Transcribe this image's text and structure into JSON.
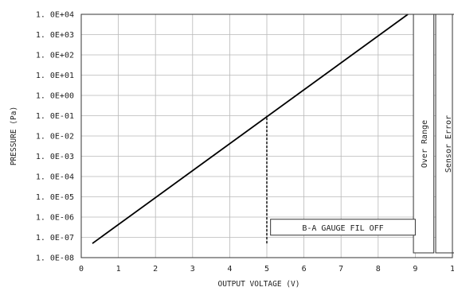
{
  "chart_data": {
    "type": "line",
    "title": "",
    "xlabel": "OUTPUT VOLTAGE (V)",
    "ylabel": "PRESSURE (Pa)",
    "xlim": [
      0,
      10
    ],
    "x_ticks": [
      "0",
      "1",
      "2",
      "3",
      "4",
      "5",
      "6",
      "7",
      "8",
      "9",
      "1"
    ],
    "y_scale": "log",
    "y_ticks": [
      "1.0E-08",
      "1.0E-07",
      "1.0E-06",
      "1.0E-05",
      "1.0E-04",
      "1.0E-03",
      "1.0E-02",
      "1.0E-01",
      "1.0E+00",
      "1.0E+01",
      "1.0E+02",
      "1.0E+03",
      "1.0E+04"
    ],
    "ylim_exp": [
      -8,
      4
    ],
    "grid": true,
    "series": [
      {
        "x": [
          0.3,
          8.8
        ],
        "y": [
          5e-08,
          10000.0
        ],
        "color": "#000000"
      }
    ],
    "reference_line": {
      "x": 5,
      "y_from": 5e-08,
      "y_to": 0.1,
      "style": "dashed"
    },
    "annotations": [
      {
        "text": "B-A GAUGE FIL OFF",
        "x_from": 5.1,
        "x_to": 9.0,
        "y_exp_center": -6.5
      }
    ],
    "bands": [
      {
        "text": "Over Range",
        "x_from": 8.95,
        "x_to": 9.5
      },
      {
        "text": "Sensor Error",
        "x_from": 9.55,
        "x_to": 10.2
      }
    ]
  }
}
